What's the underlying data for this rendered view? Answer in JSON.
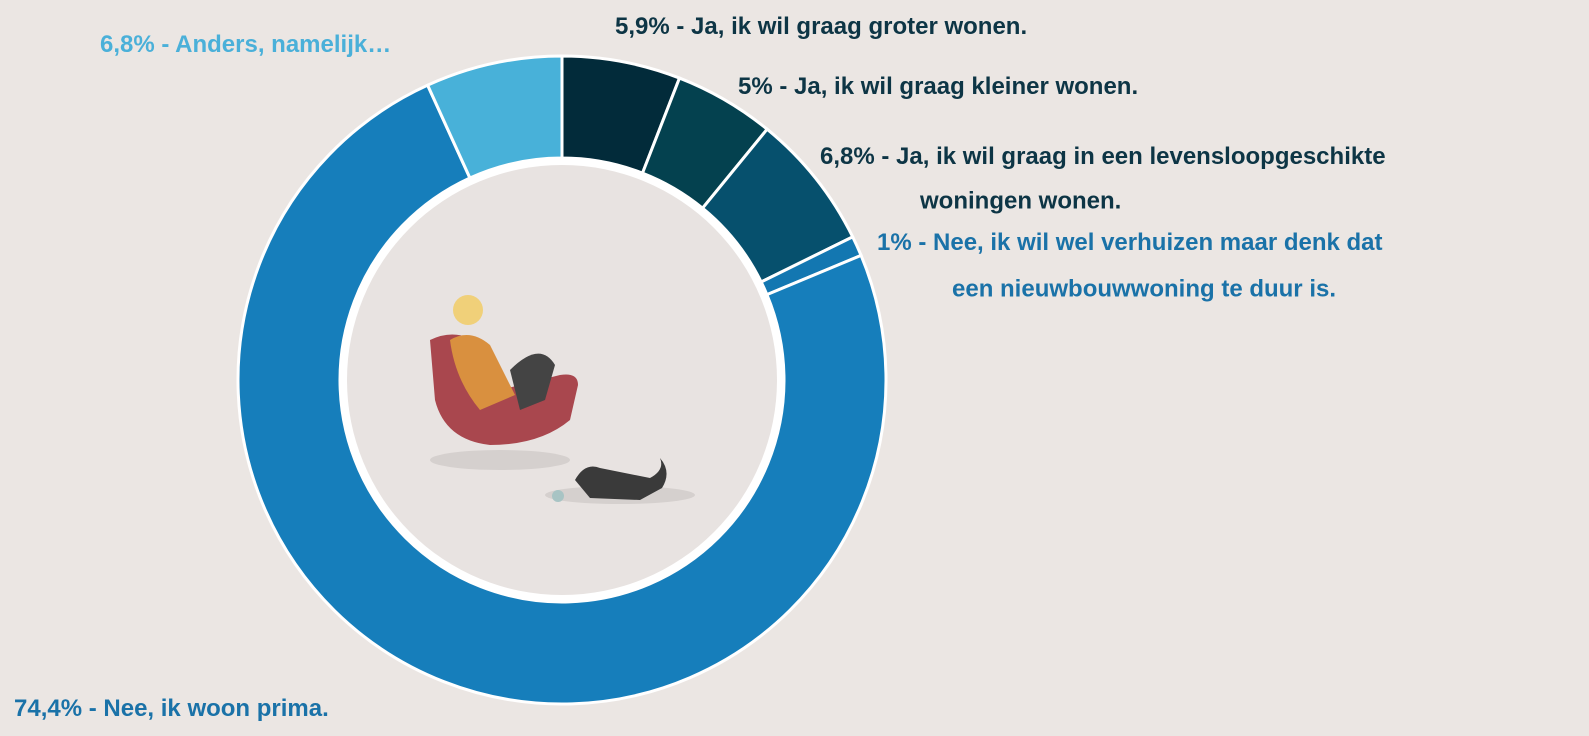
{
  "chart_data": {
    "type": "donut",
    "categories": [
      [
        "Ja, ik wil graag groter wonen."
      ],
      [
        "Ja, ik wil graag kleiner wonen."
      ],
      [
        "Ja, ik wil graag in een levensloopgeschikte",
        "woningen wonen."
      ],
      [
        "Nee, ik wil wel verhuizen maar denk dat",
        "een nieuwbouwwoning te duur is."
      ],
      [
        "Nee, ik woon prima."
      ],
      [
        "Anders, namelijk…"
      ]
    ],
    "values": [
      5.9,
      5,
      6.8,
      1,
      74.4,
      6.8
    ],
    "value_labels": [
      "5,9%",
      "5%",
      "6,8%",
      "1%",
      "74,4%",
      "6,8%"
    ],
    "label_separator": " - ",
    "colors": [
      "#022b3a",
      "#04414f",
      "#06506d",
      "#1377b1",
      "#167ebb",
      "#48b1d9"
    ],
    "label_colors": [
      "#0d3545",
      "#0d3545",
      "#0d3545",
      "#1a72a8",
      "#1a72a8",
      "#4ab0d9"
    ]
  }
}
